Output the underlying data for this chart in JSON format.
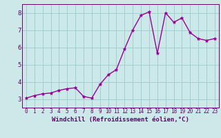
{
  "x": [
    0,
    1,
    2,
    3,
    4,
    5,
    6,
    7,
    8,
    9,
    10,
    11,
    12,
    13,
    14,
    15,
    16,
    17,
    18,
    19,
    20,
    21,
    22,
    23
  ],
  "y": [
    3.05,
    3.2,
    3.3,
    3.35,
    3.5,
    3.6,
    3.65,
    3.15,
    3.05,
    3.85,
    4.4,
    4.7,
    5.9,
    7.0,
    7.85,
    8.05,
    5.65,
    8.0,
    7.45,
    7.7,
    6.85,
    6.5,
    6.4,
    6.5
  ],
  "line_color": "#990099",
  "marker": "*",
  "background_color": "#cce8e8",
  "grid_color": "#99cccc",
  "xlabel": "Windchill (Refroidissement éolien,°C)",
  "xlim": [
    -0.5,
    23.5
  ],
  "ylim": [
    2.5,
    8.5
  ],
  "yticks": [
    3,
    4,
    5,
    6,
    7,
    8
  ],
  "xticks": [
    0,
    1,
    2,
    3,
    4,
    5,
    6,
    7,
    8,
    9,
    10,
    11,
    12,
    13,
    14,
    15,
    16,
    17,
    18,
    19,
    20,
    21,
    22,
    23
  ],
  "tick_color": "#660066",
  "label_fontsize": 6.5,
  "tick_fontsize": 5.5,
  "line_width": 1.0,
  "marker_size": 3.5
}
